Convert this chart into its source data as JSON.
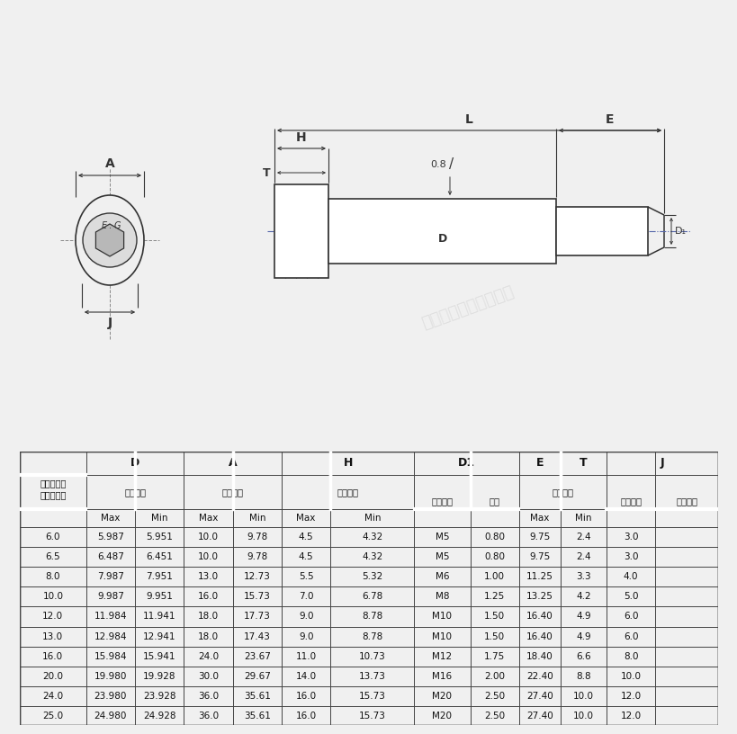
{
  "bg_color": "#f0f0f0",
  "diagram_bg": "#f0f0f0",
  "line_color": "#333333",
  "watermark": "浦清精密零件有限公司",
  "rows": [
    [
      "6.0",
      "5.987",
      "5.951",
      "10.0",
      "9.78",
      "4.5",
      "4.32",
      "M5",
      "0.80",
      "9.75",
      "2.4",
      "3.0"
    ],
    [
      "6.5",
      "6.487",
      "6.451",
      "10.0",
      "9.78",
      "4.5",
      "4.32",
      "M5",
      "0.80",
      "9.75",
      "2.4",
      "3.0"
    ],
    [
      "8.0",
      "7.987",
      "7.951",
      "13.0",
      "12.73",
      "5.5",
      "5.32",
      "M6",
      "1.00",
      "11.25",
      "3.3",
      "4.0"
    ],
    [
      "10.0",
      "9.987",
      "9.951",
      "16.0",
      "15.73",
      "7.0",
      "6.78",
      "M8",
      "1.25",
      "13.25",
      "4.2",
      "5.0"
    ],
    [
      "12.0",
      "11.984",
      "11.941",
      "18.0",
      "17.73",
      "9.0",
      "8.78",
      "M10",
      "1.50",
      "16.40",
      "4.9",
      "6.0"
    ],
    [
      "13.0",
      "12.984",
      "12.941",
      "18.0",
      "17.43",
      "9.0",
      "8.78",
      "M10",
      "1.50",
      "16.40",
      "4.9",
      "6.0"
    ],
    [
      "16.0",
      "15.984",
      "15.941",
      "24.0",
      "23.67",
      "11.0",
      "10.73",
      "M12",
      "1.75",
      "18.40",
      "6.6",
      "8.0"
    ],
    [
      "20.0",
      "19.980",
      "19.928",
      "30.0",
      "29.67",
      "14.0",
      "13.73",
      "M16",
      "2.00",
      "22.40",
      "8.8",
      "10.0"
    ],
    [
      "24.0",
      "23.980",
      "23.928",
      "36.0",
      "35.61",
      "16.0",
      "15.73",
      "M20",
      "2.50",
      "27.40",
      "10.0",
      "12.0"
    ],
    [
      "25.0",
      "24.980",
      "24.928",
      "36.0",
      "35.61",
      "16.0",
      "15.73",
      "M20",
      "2.50",
      "27.40",
      "10.0",
      "12.0"
    ]
  ]
}
